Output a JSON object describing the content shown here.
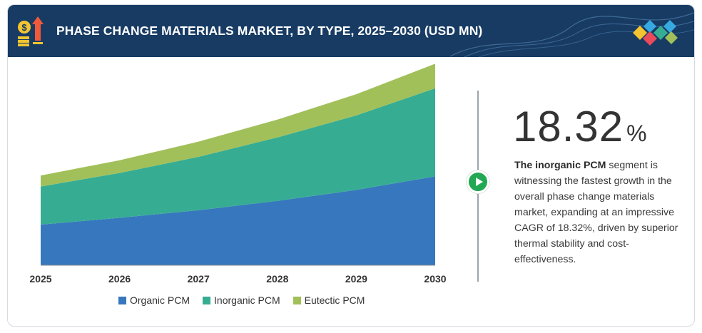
{
  "header": {
    "title": "PHASE CHANGE MATERIALS MARKET, BY TYPE, 2025–2030 (USD MN)",
    "icon": "money-growth-icon",
    "logo": "diamond-tiles-logo-icon"
  },
  "colors": {
    "header_bg": "#173b63",
    "organic": "#3777bd",
    "inorganic": "#36ad93",
    "eutectic": "#a2c05a",
    "accent_green": "#22a852"
  },
  "chart_data": {
    "type": "area",
    "stacked": true,
    "categories": [
      "2025",
      "2026",
      "2027",
      "2028",
      "2029",
      "2030"
    ],
    "series": [
      {
        "name": "Organic PCM",
        "values": [
          48,
          56,
          65,
          76,
          89,
          105
        ]
      },
      {
        "name": "Inorganic PCM",
        "values": [
          45,
          53,
          63,
          75,
          88,
          104
        ]
      },
      {
        "name": "Eutectic PCM",
        "values": [
          13,
          15,
          18,
          21,
          25,
          29
        ]
      }
    ],
    "title": "",
    "xlabel": "",
    "ylabel": "",
    "ylim": [
      0,
      240
    ],
    "grid": false,
    "y_axis_visible": false,
    "legend_position": "bottom"
  },
  "highlight": {
    "value": "18.32",
    "unit": "%",
    "description_bold": "The inorganic PCM",
    "description_rest": " segment is witnessing the fastest growth in the overall phase change materials market, expanding at an impressive CAGR of 18.32%, driven by superior thermal stability and cost-effectiveness.",
    "play_icon": "play-icon"
  }
}
